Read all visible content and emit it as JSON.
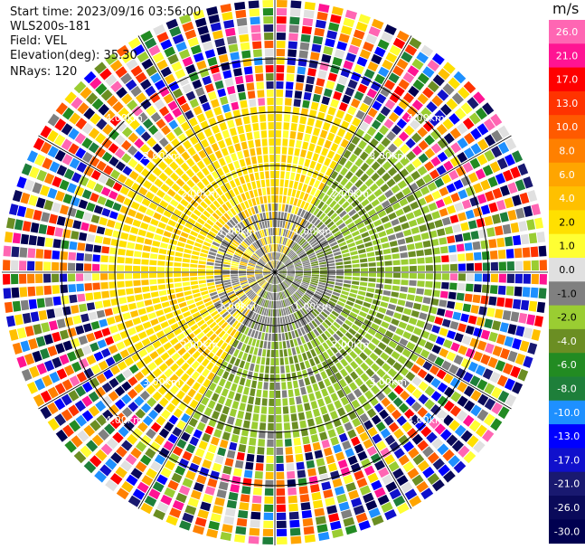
{
  "header": {
    "start_time": "Start time: 2023/09/16 03:56:00",
    "station": "WLS200s-181",
    "field": "Field: VEL",
    "elevation": "Elevation(deg): 35.30",
    "nrays": "NRays: 120"
  },
  "colorbar": {
    "unit": "m/s",
    "ticks": [
      "26.0",
      "21.0",
      "17.0",
      "13.0",
      "10.0",
      "8.0",
      "6.0",
      "4.0",
      "2.0",
      "1.0",
      "0.0",
      "-1.0",
      "-2.0",
      "-4.0",
      "-6.0",
      "-8.0",
      "-10.0",
      "-13.0",
      "-17.0",
      "-21.0",
      "-26.0",
      "-30.0"
    ],
    "colors": [
      "#ff66b3",
      "#ff1493",
      "#ff0000",
      "#ff3300",
      "#ff5a00",
      "#ff8000",
      "#ffa500",
      "#ffc000",
      "#ffe000",
      "#ffff33",
      "#e0e0e0",
      "#808080",
      "#9acd32",
      "#6b8e23",
      "#228b22",
      "#1e7f3a",
      "#1e90ff",
      "#0000ff",
      "#1010cc",
      "#191970",
      "#0a0a5a",
      "#000050"
    ]
  },
  "chart_data": {
    "type": "heatmap",
    "subtype": "radar-ppi",
    "field": "VEL",
    "units": "m/s",
    "nrays": 120,
    "range_rings_km": [
      1.0,
      2.0,
      3.0,
      4.0
    ],
    "ring_labels": [
      "1.00km",
      "2.00km",
      "3.00km",
      "4.00km"
    ],
    "colorbar_range": [
      -30.0,
      26.0
    ],
    "pattern": {
      "positive_sector_deg": [
        210,
        30
      ],
      "negative_sector_deg": [
        30,
        210
      ],
      "coherent_range_km": 3.2,
      "noise_beyond_km": 3.2
    }
  }
}
